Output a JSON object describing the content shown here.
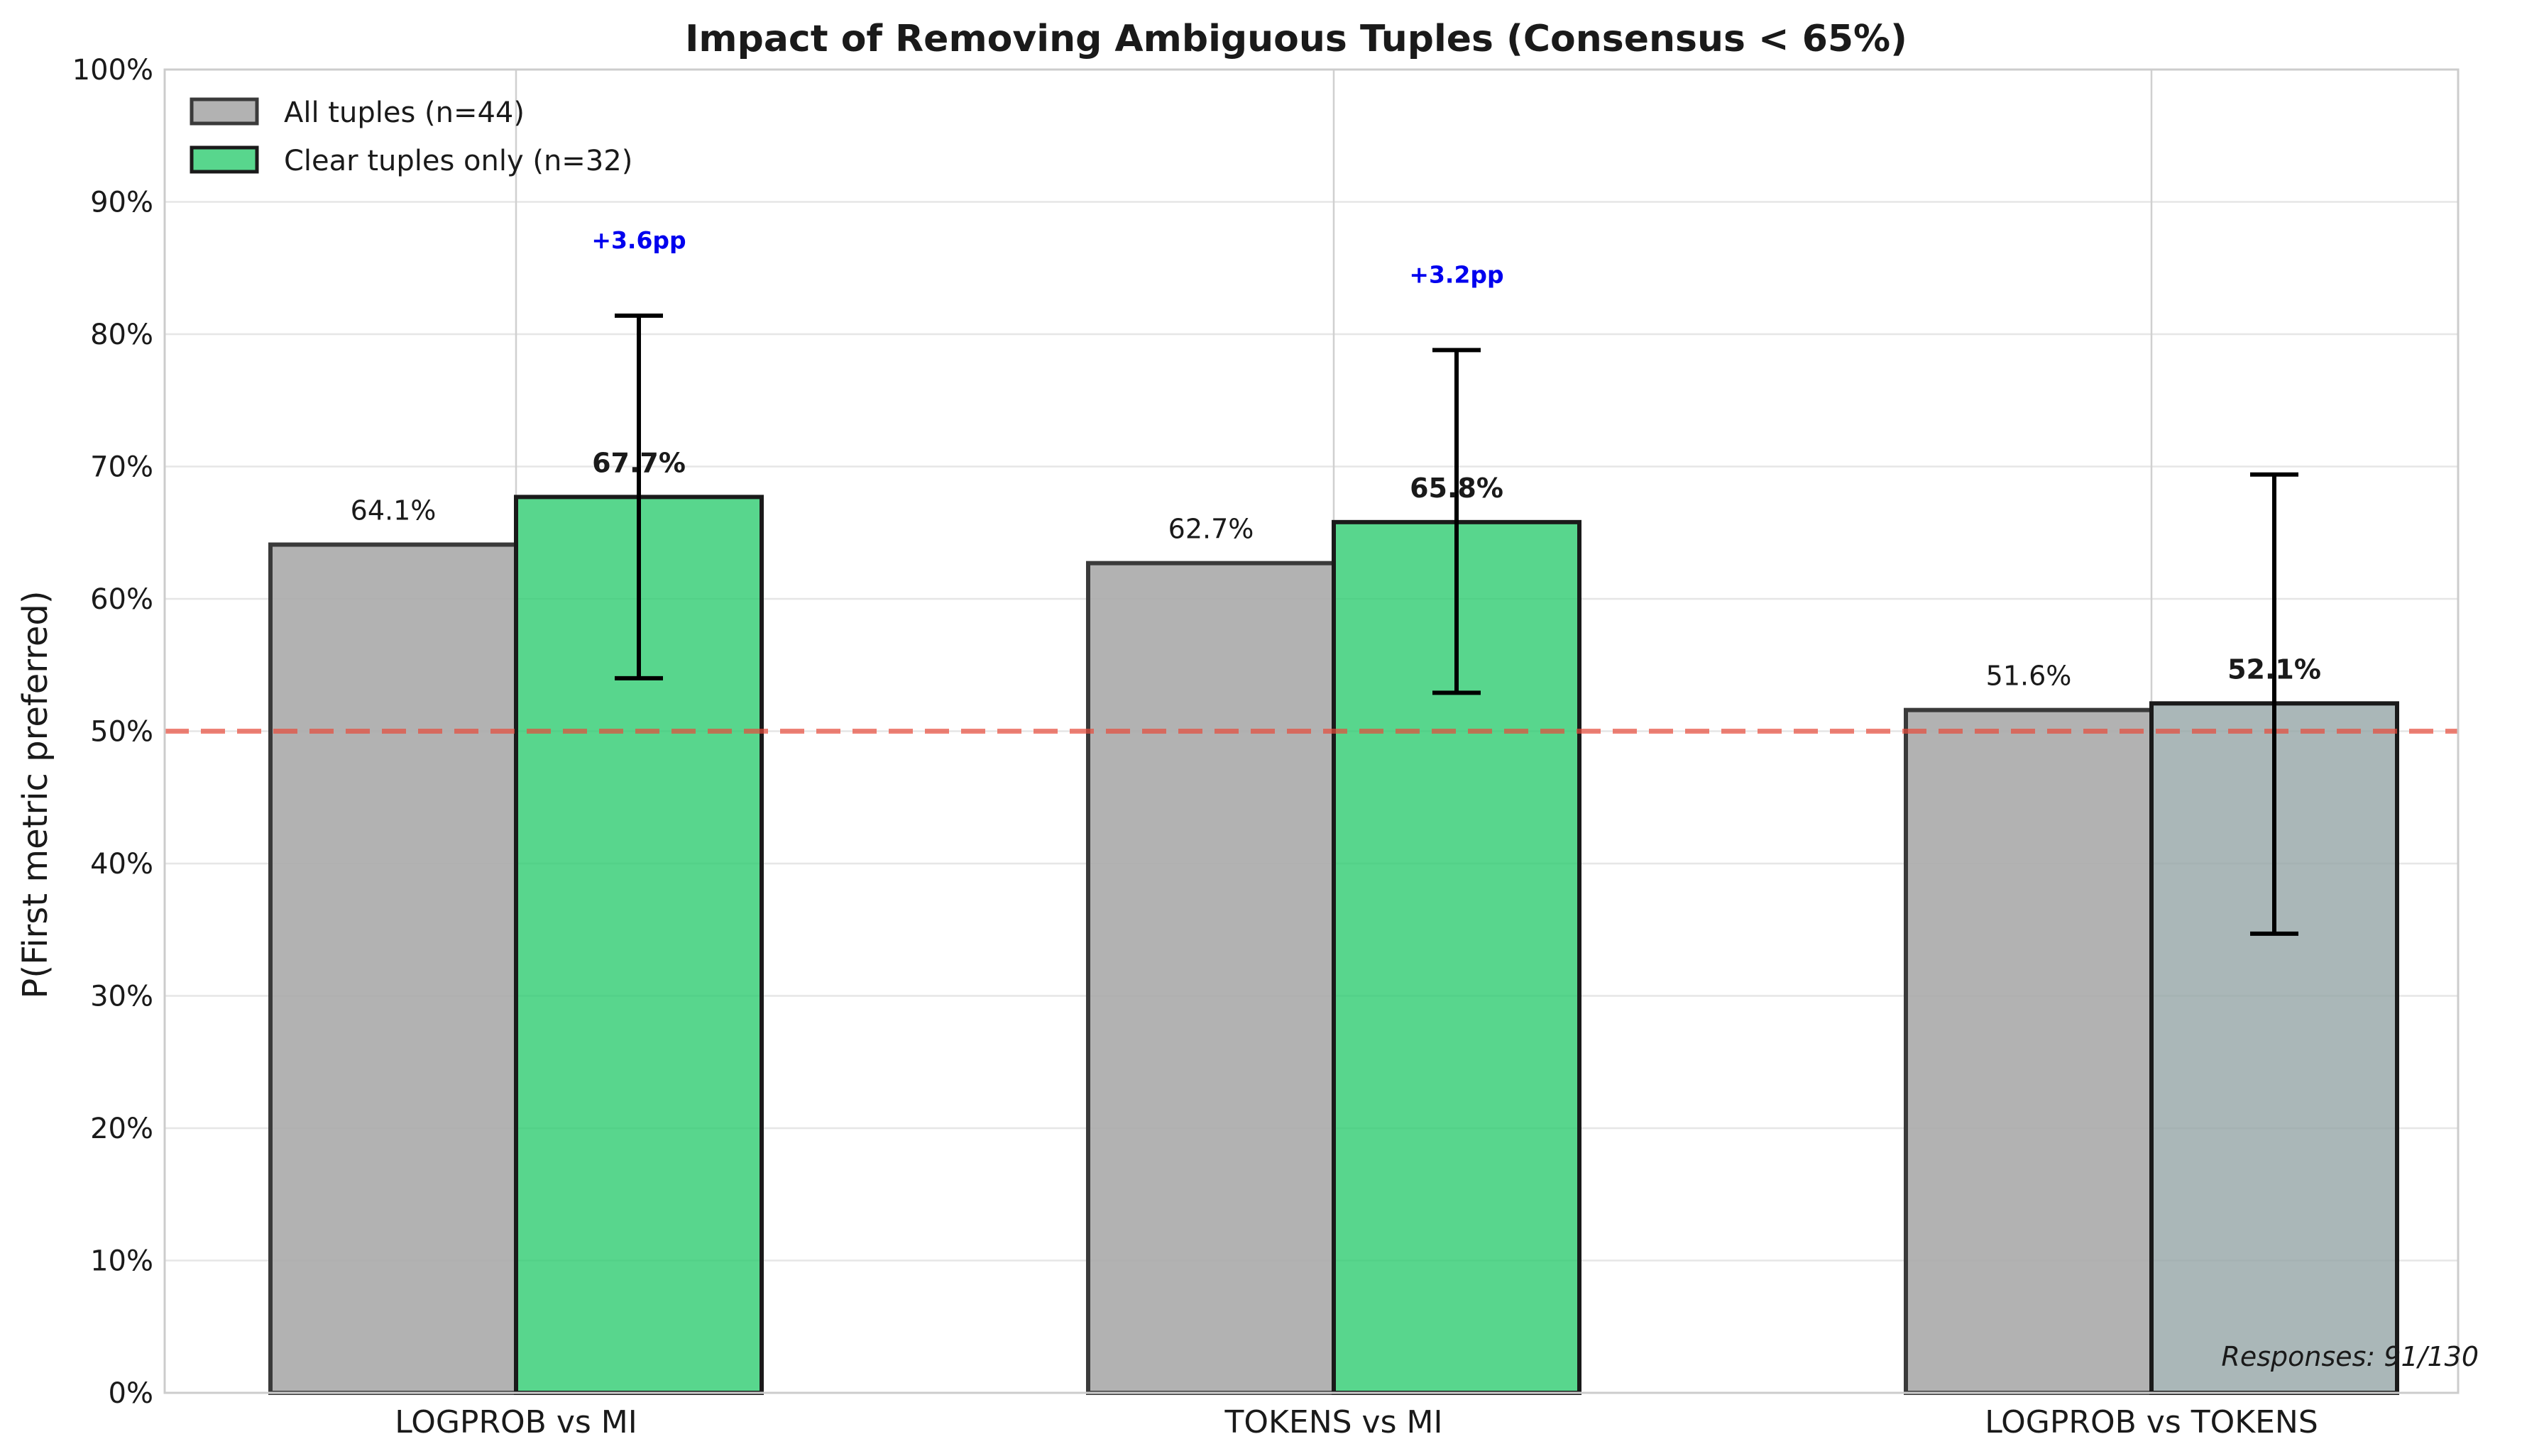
{
  "chart_data": {
    "type": "bar",
    "title": "Impact of Removing Ambiguous Tuples (Consensus < 65%)",
    "xlabel": "",
    "ylabel": "P(First metric preferred)",
    "ylim": [
      0,
      100
    ],
    "yticks": [
      0,
      10,
      20,
      30,
      40,
      50,
      60,
      70,
      80,
      90,
      100
    ],
    "ytick_labels": [
      "0%",
      "10%",
      "20%",
      "30%",
      "40%",
      "50%",
      "60%",
      "70%",
      "80%",
      "90%",
      "100%"
    ],
    "categories": [
      "LOGPROB vs MI",
      "TOKENS vs MI",
      "LOGPROB vs TOKENS"
    ],
    "series": [
      {
        "name": "All tuples (n=44)",
        "values": [
          64.1,
          62.7,
          51.6
        ],
        "labels": [
          "64.1%",
          "62.7%",
          "51.6%"
        ],
        "colors": [
          "#aaaaaa",
          "#aaaaaa",
          "#aaaaaa"
        ]
      },
      {
        "name": "Clear tuples only (n=32)",
        "values": [
          67.7,
          65.8,
          52.1
        ],
        "labels": [
          "67.7%",
          "65.8%",
          "52.1%"
        ],
        "error_low": [
          54.0,
          52.9,
          34.7
        ],
        "error_high": [
          81.4,
          78.8,
          69.4
        ],
        "colors": [
          "#2ecc71",
          "#2ecc71",
          "#95a5a6"
        ]
      }
    ],
    "differences": [
      {
        "category": "LOGPROB vs MI",
        "text": "+3.6pp"
      },
      {
        "category": "TOKENS vs MI",
        "text": "+3.2pp"
      }
    ],
    "reference_line": {
      "y": 50,
      "color": "#e74c3c",
      "style": "dashed"
    },
    "legend_placement": "top-left",
    "grid": true,
    "footnote": "Responses: 91/130",
    "colors": {
      "all_bar": "#aaaaaa",
      "clear_bar": "#2ecc71",
      "clear_bar_neutral": "#95a5a6",
      "diff_text": "#0000ee",
      "reference_line": "#e74c3c"
    }
  }
}
